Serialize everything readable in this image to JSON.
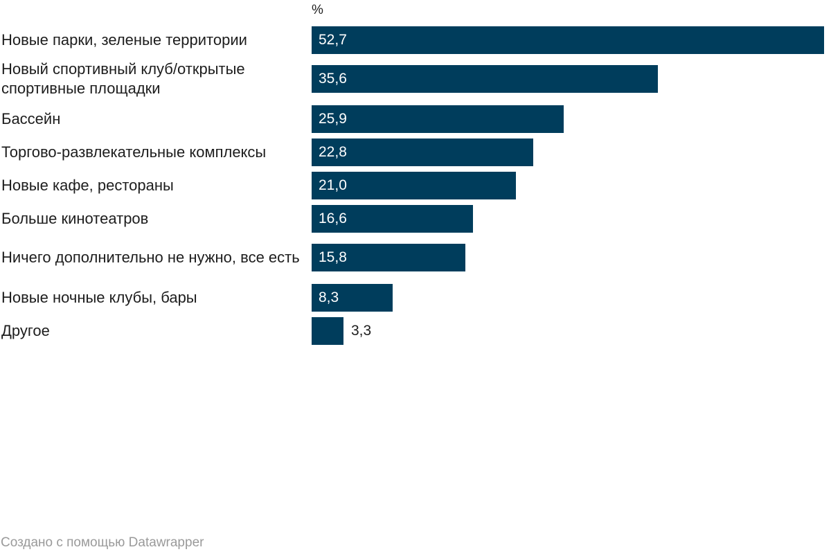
{
  "chart_data": {
    "type": "bar",
    "orientation": "horizontal",
    "unit_label": "%",
    "categories": [
      "Новые парки, зеленые территории",
      "Новый спортивный клуб/открытые спортивные площадки",
      "Бассейн",
      "Торгово-развлекательные комплексы",
      "Новые кафе, рестораны",
      "Больше кинотеатров",
      "Ничего дополнительно не нужно, все есть",
      "Новые ночные клубы, бары",
      "Другое"
    ],
    "values": [
      52.7,
      35.6,
      25.9,
      22.8,
      21.0,
      16.6,
      15.8,
      8.3,
      3.3
    ],
    "value_labels": [
      "52,7",
      "35,6",
      "25,9",
      "22,8",
      "21,0",
      "16,6",
      "15,8",
      "8,3",
      "3,3"
    ],
    "xlim": [
      0,
      52.7
    ],
    "bar_color": "#003d5c",
    "grid": false,
    "legend": "none"
  },
  "footer": {
    "credit": "Создано с помощью Datawrapper"
  }
}
